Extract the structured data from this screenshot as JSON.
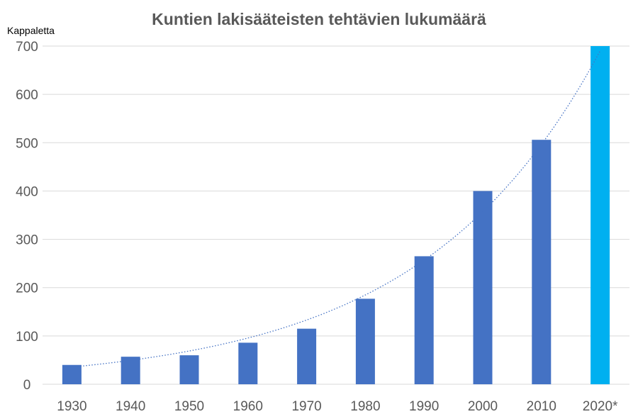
{
  "colors": {
    "bar": "#4472C4",
    "highlight_bar": "#00B0F0",
    "grid": "#D9D9D9",
    "trendline": "#4472C4",
    "text": "#595959"
  },
  "chart_data": {
    "type": "bar",
    "title": "Kuntien lakisääteisten tehtävien lukumäärä",
    "ylabel": "Kappaletta",
    "xlabel": "",
    "categories": [
      "1930",
      "1940",
      "1950",
      "1960",
      "1970",
      "1980",
      "1990",
      "2000",
      "2010",
      "2020*"
    ],
    "values": [
      40,
      57,
      60,
      86,
      115,
      177,
      265,
      400,
      506,
      700
    ],
    "highlight_index": 9,
    "ylim": [
      0,
      700
    ],
    "yticks": [
      0,
      100,
      200,
      300,
      400,
      500,
      600,
      700
    ],
    "grid": true,
    "legend": "none",
    "trendline": {
      "type": "exponential",
      "style": "dotted"
    }
  }
}
